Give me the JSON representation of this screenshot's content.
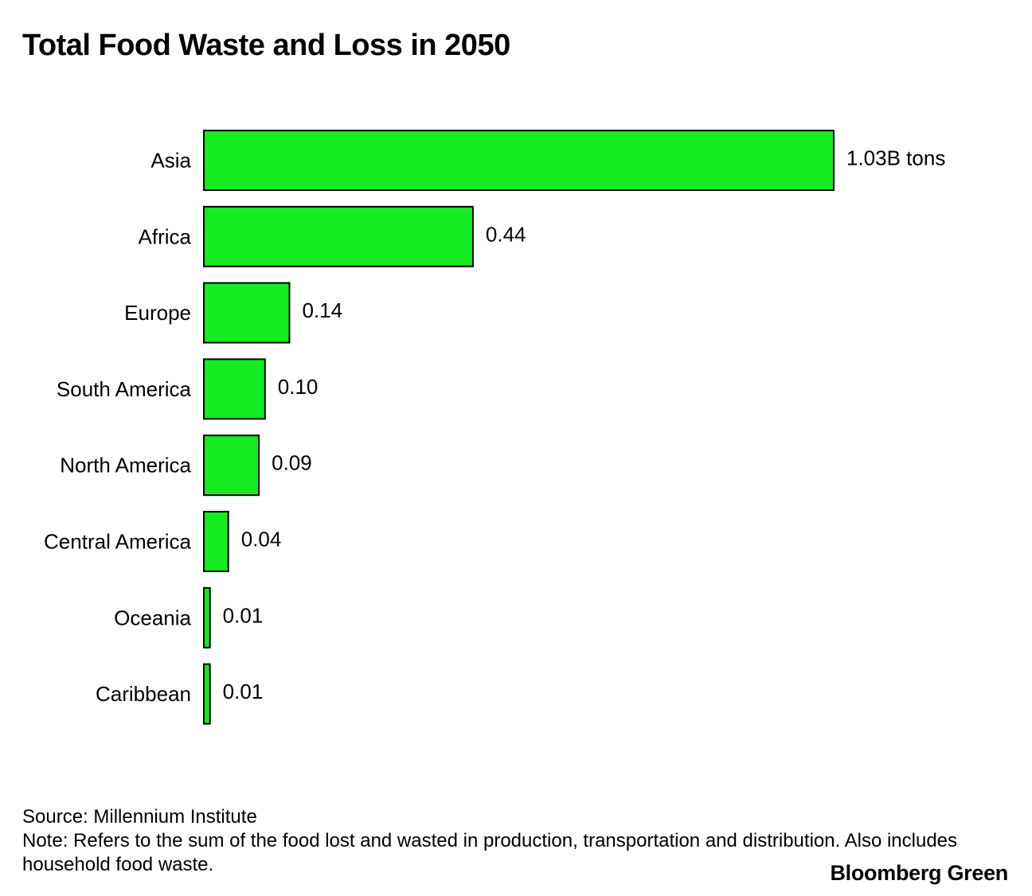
{
  "title": "Total Food Waste and Loss in 2050",
  "source": "Source: Millennium Institute",
  "note": "Note: Refers to the sum of the food lost and wasted in production, transportation and distribution. Also includes household food waste.",
  "brand": "Bloomberg Green",
  "colors": {
    "bar_fill": "#14eb20",
    "bar_stroke": "#000000",
    "text": "#000000"
  },
  "chart_data": {
    "type": "bar",
    "orientation": "horizontal",
    "title": "Total Food Waste and Loss in 2050",
    "xlabel": "",
    "ylabel": "",
    "unit": "B tons",
    "xlim": [
      0,
      1.03
    ],
    "grid": false,
    "categories": [
      "Asia",
      "Africa",
      "Europe",
      "South America",
      "North America",
      "Central America",
      "Oceania",
      "Caribbean"
    ],
    "values": [
      1.03,
      0.44,
      0.14,
      0.1,
      0.09,
      0.04,
      0.01,
      0.01
    ],
    "value_labels": [
      "1.03B tons",
      "0.44",
      "0.14",
      "0.10",
      "0.09",
      "0.04",
      "0.01",
      "0.01"
    ]
  }
}
